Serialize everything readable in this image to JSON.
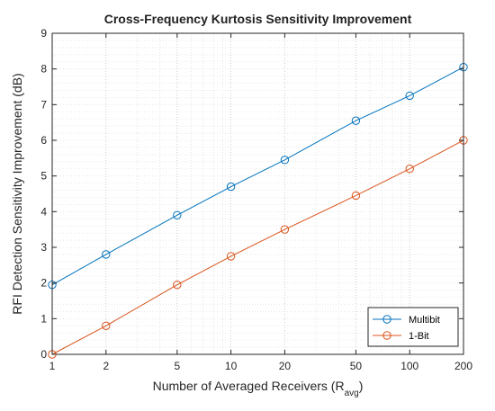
{
  "chart_data": {
    "type": "line",
    "title": "Cross-Frequency Kurtosis Sensitivity Improvement",
    "xlabel": {
      "main": "Number of Averaged Receivers (R",
      "sub": "avg",
      "close": ")"
    },
    "ylabel": "RFI Detection Sensitivity Improvement (dB)",
    "xscale": "log",
    "xlim": [
      1,
      200
    ],
    "ylim": [
      0,
      9
    ],
    "x_ticks": [
      "1",
      "2",
      "5",
      "10",
      "20",
      "50",
      "100",
      "200"
    ],
    "y_ticks": [
      "0",
      "1",
      "2",
      "3",
      "4",
      "5",
      "6",
      "7",
      "8",
      "9"
    ],
    "grid": "major and minor, dotted",
    "legend_position": "bottom-right",
    "x": [
      1,
      2,
      5,
      10,
      20,
      50,
      100,
      200
    ],
    "series": [
      {
        "name": "Multibit",
        "color": "#0072BD",
        "values": [
          1.95,
          2.8,
          3.9,
          4.7,
          5.45,
          6.55,
          7.25,
          8.05
        ]
      },
      {
        "name": "1-Bit",
        "color": "#D95319",
        "values": [
          0.0,
          0.8,
          1.95,
          2.75,
          3.5,
          4.45,
          5.2,
          6.0
        ]
      }
    ]
  }
}
